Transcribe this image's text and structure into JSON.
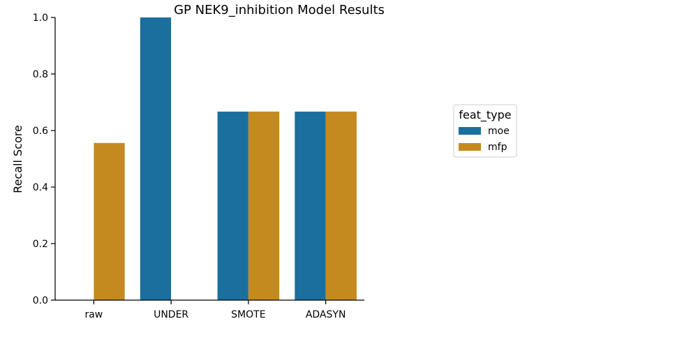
{
  "chart_data": {
    "type": "bar",
    "title": "GP NEK9_inhibition Model Results",
    "xlabel": "",
    "ylabel": "Recall Score",
    "categories": [
      "raw",
      "UNDER",
      "SMOTE",
      "ADASYN"
    ],
    "ylim": [
      0,
      1.0
    ],
    "yticks": [
      "0.0",
      "0.2",
      "0.4",
      "0.6",
      "0.8",
      "1.0"
    ],
    "grid": false,
    "legend": {
      "title": "feat_type",
      "placement": "right"
    },
    "series": [
      {
        "name": "moe",
        "color": "#1a6f9f",
        "values": [
          0.0,
          1.0,
          0.667,
          0.667
        ]
      },
      {
        "name": "mfp",
        "color": "#c48a20",
        "values": [
          0.556,
          0.0,
          0.667,
          0.667
        ]
      }
    ]
  }
}
